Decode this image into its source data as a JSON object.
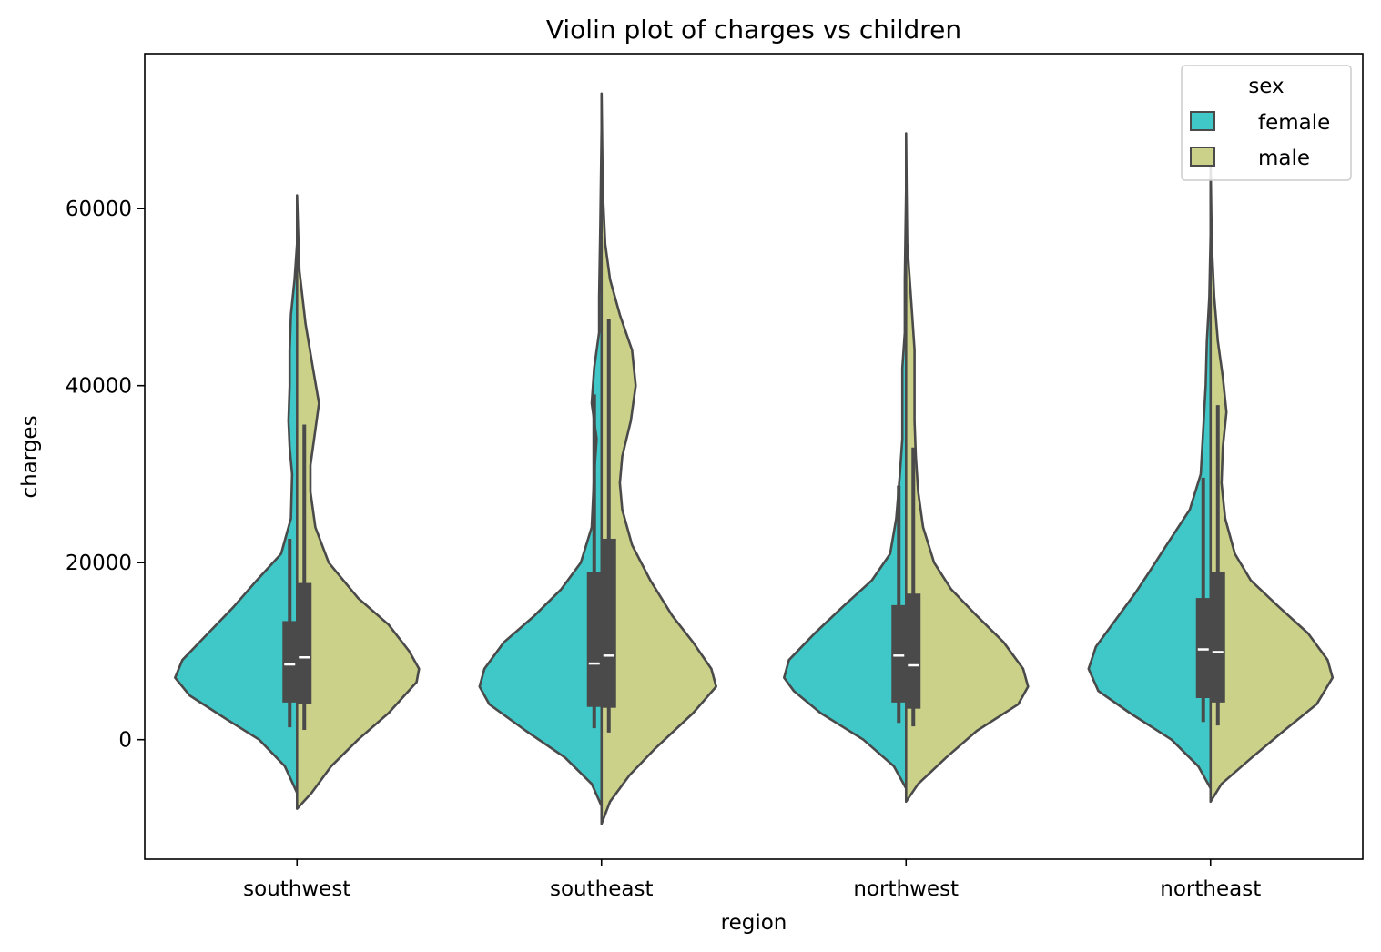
{
  "chart_data": {
    "type": "violin",
    "title": "Violin plot of charges vs children",
    "xlabel": "region",
    "ylabel": "charges",
    "categories": [
      "southwest",
      "southeast",
      "northwest",
      "northeast"
    ],
    "yticks": [
      0,
      20000,
      40000,
      60000
    ],
    "ylim": [
      -13500,
      77500
    ],
    "grid": false,
    "legend": {
      "title": "sex",
      "placement": "top-right",
      "entries": [
        {
          "name": "female",
          "color": "#40c8c8"
        },
        {
          "name": "male",
          "color": "#ccd18a"
        }
      ]
    },
    "colors": {
      "female": "#40c8c8",
      "male": "#ccd18a",
      "outline": "#4a4a4a",
      "median": "#ffffff"
    },
    "series": [
      {
        "name": "female",
        "violins": [
          {
            "category": "southwest",
            "lo": -6000,
            "hi": 56000,
            "profile": [
              [
                -6000,
                0
              ],
              [
                -3000,
                0.1
              ],
              [
                0,
                0.31
              ],
              [
                2500,
                0.6
              ],
              [
                5000,
                0.88
              ],
              [
                7000,
                1.0
              ],
              [
                9000,
                0.94
              ],
              [
                12000,
                0.73
              ],
              [
                15000,
                0.52
              ],
              [
                18000,
                0.33
              ],
              [
                21000,
                0.13
              ],
              [
                25000,
                0.05
              ],
              [
                30000,
                0.04
              ],
              [
                33000,
                0.06
              ],
              [
                36000,
                0.07
              ],
              [
                40000,
                0.06
              ],
              [
                44000,
                0.06
              ],
              [
                48000,
                0.05
              ],
              [
                52000,
                0.02
              ],
              [
                56000,
                0
              ]
            ],
            "box": {
              "q1": 4200,
              "median": 8500,
              "q3": 13400,
              "whisker_low": 1400,
              "whisker_high": 22700
            }
          },
          {
            "category": "southeast",
            "lo": -7500,
            "hi": 69000,
            "profile": [
              [
                -7500,
                0
              ],
              [
                -5000,
                0.08
              ],
              [
                -2000,
                0.3
              ],
              [
                1000,
                0.62
              ],
              [
                4000,
                0.92
              ],
              [
                6000,
                1.0
              ],
              [
                8000,
                0.96
              ],
              [
                11000,
                0.8
              ],
              [
                14000,
                0.55
              ],
              [
                17000,
                0.33
              ],
              [
                20000,
                0.17
              ],
              [
                24000,
                0.08
              ],
              [
                30000,
                0.06
              ],
              [
                34000,
                0.04
              ],
              [
                38000,
                0.08
              ],
              [
                42000,
                0.06
              ],
              [
                46000,
                0.02
              ],
              [
                50000,
                0.02
              ],
              [
                58000,
                0.01
              ],
              [
                69000,
                0
              ]
            ],
            "box": {
              "q1": 3700,
              "median": 8600,
              "q3": 18900,
              "whisker_low": 1300,
              "whisker_high": 39000
            }
          },
          {
            "category": "northwest",
            "lo": -5500,
            "hi": 62000,
            "profile": [
              [
                -5500,
                0
              ],
              [
                -3000,
                0.1
              ],
              [
                0,
                0.35
              ],
              [
                3000,
                0.7
              ],
              [
                5500,
                0.92
              ],
              [
                7000,
                1.0
              ],
              [
                9000,
                0.96
              ],
              [
                12000,
                0.75
              ],
              [
                15000,
                0.52
              ],
              [
                18000,
                0.28
              ],
              [
                21000,
                0.13
              ],
              [
                25000,
                0.08
              ],
              [
                30000,
                0.05
              ],
              [
                34000,
                0.03
              ],
              [
                38000,
                0.03
              ],
              [
                42000,
                0.03
              ],
              [
                46000,
                0.01
              ],
              [
                52000,
                0.01
              ],
              [
                62000,
                0
              ]
            ],
            "box": {
              "q1": 4200,
              "median": 9500,
              "q3": 15200,
              "whisker_low": 1900,
              "whisker_high": 28700
            }
          },
          {
            "category": "northeast",
            "lo": -5500,
            "hi": 57000,
            "profile": [
              [
                -5500,
                0
              ],
              [
                -3000,
                0.1
              ],
              [
                0,
                0.32
              ],
              [
                3000,
                0.66
              ],
              [
                5500,
                0.92
              ],
              [
                8000,
                1.0
              ],
              [
                10500,
                0.94
              ],
              [
                13500,
                0.78
              ],
              [
                16500,
                0.62
              ],
              [
                19000,
                0.5
              ],
              [
                22000,
                0.36
              ],
              [
                26000,
                0.17
              ],
              [
                30000,
                0.08
              ],
              [
                35000,
                0.06
              ],
              [
                40000,
                0.04
              ],
              [
                45000,
                0.03
              ],
              [
                50000,
                0.01
              ],
              [
                57000,
                0
              ]
            ],
            "box": {
              "q1": 4700,
              "median": 10200,
              "q3": 16000,
              "whisker_low": 2000,
              "whisker_high": 29600
            }
          }
        ]
      },
      {
        "name": "male",
        "violins": [
          {
            "category": "southwest",
            "lo": -7800,
            "hi": 61500,
            "profile": [
              [
                -7800,
                0
              ],
              [
                -6000,
                0.12
              ],
              [
                -3000,
                0.28
              ],
              [
                0,
                0.5
              ],
              [
                3000,
                0.75
              ],
              [
                6500,
                0.98
              ],
              [
                8000,
                1.0
              ],
              [
                10000,
                0.92
              ],
              [
                13000,
                0.75
              ],
              [
                16000,
                0.5
              ],
              [
                20000,
                0.26
              ],
              [
                24000,
                0.15
              ],
              [
                28000,
                0.11
              ],
              [
                31000,
                0.11
              ],
              [
                35000,
                0.15
              ],
              [
                38000,
                0.18
              ],
              [
                42000,
                0.13
              ],
              [
                47000,
                0.07
              ],
              [
                53000,
                0.02
              ],
              [
                57000,
                0.01
              ],
              [
                61500,
                0
              ]
            ],
            "box": {
              "q1": 4000,
              "median": 9300,
              "q3": 17700,
              "whisker_low": 1100,
              "whisker_high": 35600
            }
          },
          {
            "category": "southeast",
            "lo": -9500,
            "hi": 73000,
            "profile": [
              [
                -9500,
                0
              ],
              [
                -7000,
                0.07
              ],
              [
                -4000,
                0.23
              ],
              [
                -1000,
                0.44
              ],
              [
                3000,
                0.75
              ],
              [
                6000,
                0.94
              ],
              [
                8000,
                0.9
              ],
              [
                11000,
                0.75
              ],
              [
                14000,
                0.58
              ],
              [
                18000,
                0.4
              ],
              [
                22000,
                0.25
              ],
              [
                26000,
                0.17
              ],
              [
                29000,
                0.15
              ],
              [
                32000,
                0.17
              ],
              [
                36000,
                0.24
              ],
              [
                40000,
                0.28
              ],
              [
                44000,
                0.25
              ],
              [
                48000,
                0.15
              ],
              [
                52000,
                0.07
              ],
              [
                56000,
                0.03
              ],
              [
                62000,
                0.01
              ],
              [
                73000,
                0
              ]
            ],
            "box": {
              "q1": 3600,
              "median": 9500,
              "q3": 22700,
              "whisker_low": 800,
              "whisker_high": 47500
            }
          },
          {
            "category": "northwest",
            "lo": -7000,
            "hi": 68500,
            "profile": [
              [
                -7000,
                0
              ],
              [
                -5000,
                0.1
              ],
              [
                -2000,
                0.33
              ],
              [
                1000,
                0.58
              ],
              [
                4000,
                0.92
              ],
              [
                6000,
                1.0
              ],
              [
                8000,
                0.96
              ],
              [
                11000,
                0.8
              ],
              [
                14000,
                0.58
              ],
              [
                17000,
                0.37
              ],
              [
                20000,
                0.23
              ],
              [
                24000,
                0.14
              ],
              [
                28000,
                0.1
              ],
              [
                32000,
                0.08
              ],
              [
                36000,
                0.07
              ],
              [
                40000,
                0.07
              ],
              [
                44000,
                0.07
              ],
              [
                48000,
                0.05
              ],
              [
                52000,
                0.03
              ],
              [
                56000,
                0.01
              ],
              [
                62000,
                0.005
              ],
              [
                68500,
                0
              ]
            ],
            "box": {
              "q1": 3500,
              "median": 8400,
              "q3": 16500,
              "whisker_low": 1500,
              "whisker_high": 33000
            }
          },
          {
            "category": "northeast",
            "lo": -7000,
            "hi": 65000,
            "profile": [
              [
                -7000,
                0
              ],
              [
                -5000,
                0.09
              ],
              [
                -2000,
                0.34
              ],
              [
                1000,
                0.6
              ],
              [
                4000,
                0.87
              ],
              [
                7000,
                1.0
              ],
              [
                9000,
                0.96
              ],
              [
                12000,
                0.8
              ],
              [
                15000,
                0.56
              ],
              [
                18000,
                0.33
              ],
              [
                21000,
                0.2
              ],
              [
                25000,
                0.12
              ],
              [
                29000,
                0.09
              ],
              [
                33000,
                0.1
              ],
              [
                37000,
                0.13
              ],
              [
                41000,
                0.1
              ],
              [
                45000,
                0.06
              ],
              [
                50000,
                0.03
              ],
              [
                56000,
                0.01
              ],
              [
                65000,
                0
              ]
            ],
            "box": {
              "q1": 4200,
              "median": 9900,
              "q3": 18900,
              "whisker_low": 1600,
              "whisker_high": 37800
            }
          }
        ]
      }
    ]
  }
}
